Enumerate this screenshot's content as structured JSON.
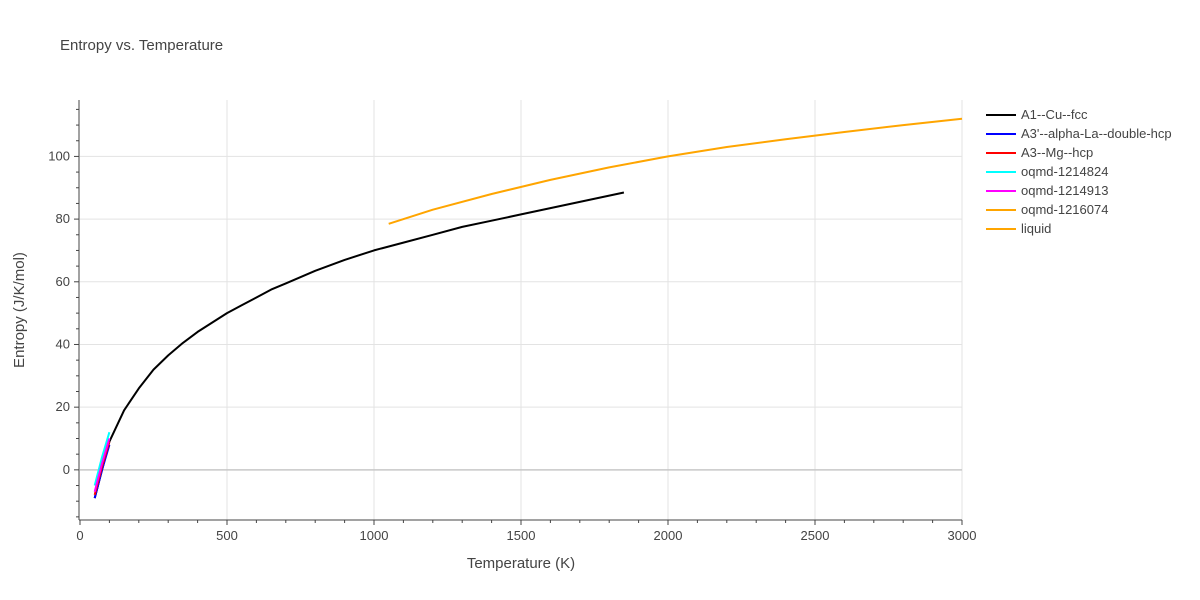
{
  "chart_data": {
    "type": "line",
    "title": "Entropy vs. Temperature",
    "xlabel": "Temperature (K)",
    "ylabel": "Entropy (J/K/mol)",
    "xlim": [
      0,
      3000
    ],
    "ylim": [
      -16,
      118
    ],
    "x_ticks": [
      0,
      500,
      1000,
      1500,
      2000,
      2500,
      3000
    ],
    "y_ticks": [
      0,
      20,
      40,
      60,
      80,
      100
    ],
    "grid": true,
    "legend_position": "right",
    "series": [
      {
        "name": "A1--Cu--fcc",
        "color": "#000000",
        "x": [
          50,
          100,
          150,
          200,
          250,
          300,
          350,
          400,
          450,
          500,
          550,
          600,
          650,
          700,
          800,
          900,
          1000,
          1100,
          1200,
          1300,
          1400,
          1500,
          1600,
          1700,
          1850
        ],
        "y": [
          -9,
          9,
          19,
          26,
          32,
          36.5,
          40.5,
          44,
          47,
          50,
          52.5,
          55,
          57.5,
          59.5,
          63.5,
          67,
          70,
          72.5,
          75,
          77.5,
          79.5,
          81.5,
          83.5,
          85.5,
          88.5
        ]
      },
      {
        "name": "A3'--alpha-La--double-hcp",
        "color": "#0000ff",
        "x": [
          50,
          75,
          100
        ],
        "y": [
          -9,
          0,
          8
        ]
      },
      {
        "name": "A3--Mg--hcp",
        "color": "#ff0000",
        "x": [
          50,
          75,
          100
        ],
        "y": [
          -8,
          1,
          9
        ]
      },
      {
        "name": "oqmd-1214824",
        "color": "#00ffff",
        "x": [
          50,
          75,
          100
        ],
        "y": [
          -5,
          4,
          12
        ]
      },
      {
        "name": "oqmd-1214913",
        "color": "#ff00ff",
        "x": [
          50,
          75,
          100
        ],
        "y": [
          -7,
          2,
          10
        ]
      },
      {
        "name": "oqmd-1216074",
        "color": "#ffa500",
        "x": [],
        "y": []
      },
      {
        "name": "liquid",
        "color": "#ffa500",
        "x": [
          1050,
          1200,
          1400,
          1600,
          1800,
          2000,
          2200,
          2400,
          2600,
          2800,
          3000
        ],
        "y": [
          78.5,
          83,
          88,
          92.5,
          96.5,
          100,
          103,
          105.5,
          107.8,
          110,
          112
        ]
      }
    ]
  }
}
